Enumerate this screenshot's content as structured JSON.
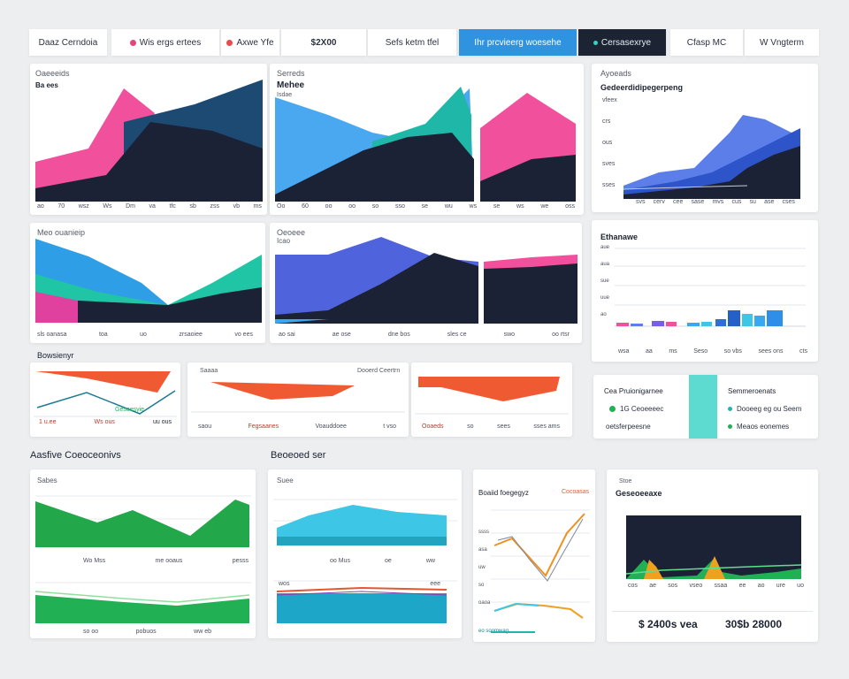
{
  "tabs": [
    {
      "label": "Daaz Cerndoia"
    },
    {
      "label": "Wis ergs ertees"
    },
    {
      "label": "Axwe Yfe"
    },
    {
      "label": "$2X00"
    },
    {
      "label": "Sefs ketm tfel"
    },
    {
      "label": "Ihr prcvieerg woesehe"
    },
    {
      "label": "Cersasexrye"
    },
    {
      "label": "Cfasp MC"
    },
    {
      "label": "W Vngterm"
    }
  ],
  "cards": {
    "c1": {
      "title": "Oaeeeids",
      "subtitle": "Ba ees",
      "ticks": [
        "ao",
        "70",
        "wsz",
        "Ws",
        "Dm",
        "va",
        "tfc",
        "sb",
        "zss",
        "vb",
        "ms"
      ]
    },
    "c2": {
      "title": "Serreds",
      "subtitle": "Mehee",
      "sub2": "Isdae",
      "ticks": [
        "Oo",
        "60",
        "oo",
        "oo",
        "so",
        "sso",
        "se",
        "wu",
        "ws",
        "se",
        "ws",
        "we",
        "oss"
      ]
    },
    "c3": {
      "title": "Ayoeads",
      "subtitle": "Gedeerdidipegerpeng",
      "ylabels": [
        "vfeex",
        "crs",
        "ous",
        "sves",
        "sses"
      ],
      "ticks": [
        "svs",
        "cerv",
        "cee",
        "sase",
        "mvs",
        "cus",
        "su",
        "ase",
        "cses"
      ]
    },
    "c4": {
      "title": "Meo ouanieip",
      "ticks": [
        "sls oanasa",
        "toa",
        "uo",
        "zrsaoiee",
        "vo ees"
      ]
    },
    "c5": {
      "title": "Oeoeee",
      "subtitle": "Icao",
      "ticks": [
        "ao sai",
        "ae ose",
        "dne bos",
        "sles ce",
        "swo",
        "oo rtsr"
      ]
    },
    "c6": {
      "title": "Ethanawe",
      "ylabels": [
        "aue",
        "aua",
        "sue",
        "uue",
        "ao"
      ],
      "ticks": [
        "wsa",
        "aa",
        "ms",
        "Seso",
        "so vbs",
        "sees ons",
        "cts"
      ]
    },
    "c7": {
      "title": "Gesoesyie",
      "labels": [
        "1 u.ee",
        "Ws ous",
        "uu ous"
      ]
    },
    "c8": {
      "title": "Saaaa",
      "sub": "Dooerd Ceertrn",
      "ticks": [
        "saou",
        "Fegsaanes",
        "Voauddoee",
        "t vso"
      ]
    },
    "c9": {
      "ticks": [
        "Ooaeds",
        "so",
        "sees",
        "sses ams"
      ]
    },
    "c10": {
      "title": "Cea Pruionigarnee",
      "row1": "1G Ceoeeeec",
      "row2": "oetsferpeesne",
      "r_title": "Semmeroenats",
      "r_row1": "Dooeeg eg ou Seem",
      "r_row2": "Meaos eonemes"
    }
  },
  "sections": {
    "left": "Aasfive Coeoceonivs",
    "mid": "Beoeoed ser",
    "top": "Bowsienyr"
  },
  "bottom": {
    "b1": {
      "title": "Sabes",
      "ticks": [
        "Wo Mss",
        "me ooaus",
        "pesss"
      ],
      "ticks2": [
        "so oo",
        "pobuos",
        "ww eb"
      ]
    },
    "b2": {
      "title": "Suee",
      "ticks": [
        "oo Mus",
        "oe",
        "ww"
      ],
      "labels2": [
        "wos",
        "eee"
      ]
    },
    "b3": {
      "title": "Boaiid foegegyz",
      "tag": "Cocoasas",
      "ylabels": [
        "ssss",
        "asa",
        "uw",
        "so",
        "oaoa",
        "eo soomwag"
      ]
    },
    "b4": {
      "title": "Stoe",
      "subtitle": "Geseoeeaxe",
      "ticks": [
        "cos",
        "ae",
        "sos",
        "vseo",
        "ssaa",
        "ee",
        "ao",
        "ure",
        "uo"
      ],
      "totals": [
        "$ 2400s vea",
        "30$b 28000"
      ]
    }
  },
  "colors": {
    "pink": "#f0509c",
    "navy": "#1b2236",
    "blue": "#3a63d8",
    "teal": "#1fb8a8",
    "green": "#22b055",
    "cyan": "#3ec6e6",
    "orange": "#f05a33"
  }
}
